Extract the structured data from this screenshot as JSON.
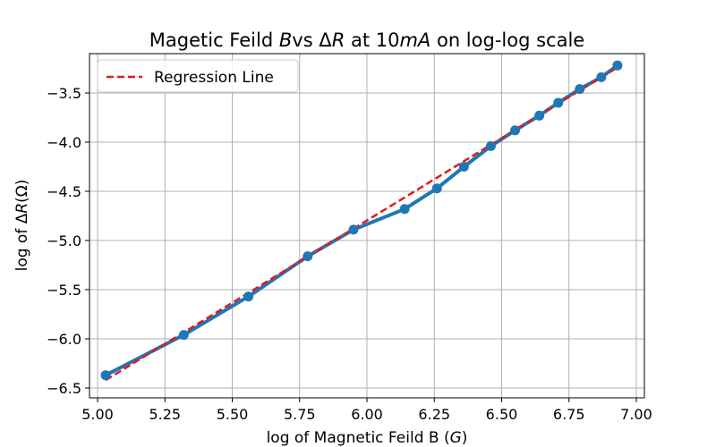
{
  "chart_data": {
    "type": "line",
    "title_parts": [
      "Magetic Feild ",
      "B",
      "vs Δ",
      "R",
      " at 10",
      "mA",
      " on log-log scale"
    ],
    "xlabel_parts": [
      "log of Magnetic Feild B (",
      "G",
      ")"
    ],
    "ylabel_parts": [
      "log of Δ",
      "R",
      "(Ω)"
    ],
    "xlim": [
      4.97,
      7.03
    ],
    "ylim": [
      -6.6,
      -3.1
    ],
    "xticks": [
      5.0,
      5.25,
      5.5,
      5.75,
      6.0,
      6.25,
      6.5,
      6.75,
      7.0
    ],
    "xtick_labels": [
      "5.00",
      "5.25",
      "5.50",
      "5.75",
      "6.00",
      "6.25",
      "6.50",
      "6.75",
      "7.00"
    ],
    "yticks": [
      -6.5,
      -6.0,
      -5.5,
      -5.0,
      -4.5,
      -4.0,
      -3.5
    ],
    "ytick_labels": [
      "−6.5",
      "−6.0",
      "−5.5",
      "−5.0",
      "−4.5",
      "−4.0",
      "−3.5"
    ],
    "grid": true,
    "legend_position": "top-left",
    "series": [
      {
        "kind": "data",
        "color": "#1f77b4",
        "style": "solid-markers",
        "x": [
          5.03,
          5.32,
          5.56,
          5.78,
          5.95,
          6.14,
          6.26,
          6.36,
          6.46,
          6.55,
          6.64,
          6.71,
          6.79,
          6.87,
          6.93
        ],
        "y": [
          -6.37,
          -5.96,
          -5.57,
          -5.16,
          -4.89,
          -4.68,
          -4.47,
          -4.25,
          -4.04,
          -3.88,
          -3.73,
          -3.6,
          -3.46,
          -3.34,
          -3.22
        ]
      },
      {
        "kind": "regression",
        "name": "Regression Line",
        "color": "#e31a1c",
        "style": "dashed",
        "x": [
          5.03,
          6.93
        ],
        "y": [
          -6.42,
          -3.24
        ]
      }
    ]
  }
}
